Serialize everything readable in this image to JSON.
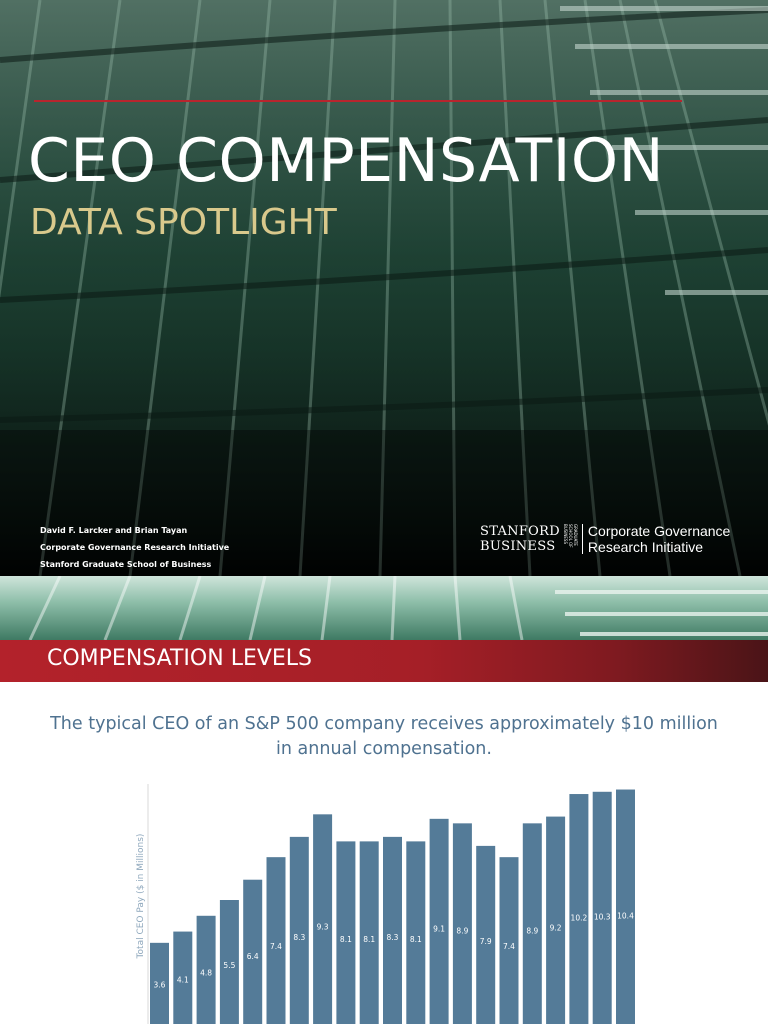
{
  "title_slide": {
    "title": "CEO COMPENSATION",
    "subtitle": "DATA SPOTLIGHT",
    "credits": [
      "David F. Larcker and Brian Tayan",
      "Corporate Governance Research Initiative",
      "Stanford Graduate School of Business"
    ],
    "logo": {
      "stanford_line1": "STANFORD",
      "stanford_line2": "BUSINESS",
      "gsb_small": "GRADUATE SCHOOL OF BUSINESS",
      "cgri_line1": "Corporate Governance",
      "cgri_line2": "Research Initiative"
    },
    "colors": {
      "accent_line": "#b8252e",
      "subtitle": "#d9c98c"
    }
  },
  "section_slide": {
    "banner_title": "COMPENSATION LEVELS",
    "headline": "The typical CEO of an S&P 500 company receives approximately $10 million in annual compensation.",
    "colors": {
      "banner": "#a51f27",
      "headline": "#4f7290"
    }
  },
  "chart_data": {
    "type": "bar",
    "ylabel": "Total CEO Pay ($ in Millions)",
    "values": [
      3.6,
      4.1,
      4.8,
      5.5,
      6.4,
      7.4,
      8.3,
      9.3,
      8.1,
      8.1,
      8.3,
      8.1,
      9.1,
      8.9,
      7.9,
      7.4,
      8.9,
      9.2,
      10.2,
      10.3,
      10.4
    ],
    "data_labels": [
      "3.6",
      "4.1",
      "4.8",
      "5.5",
      "6.4",
      "7.4",
      "8.3",
      "9.3",
      "8.1",
      "8.1",
      "8.3",
      "8.1",
      "9.1",
      "8.9",
      "7.9",
      "7.4",
      "8.9",
      "9.2",
      "10.2",
      "10.3",
      "10.4"
    ],
    "ylim": [
      0,
      11
    ],
    "bar_color": "#547b98",
    "grid": false,
    "legend": "none"
  }
}
